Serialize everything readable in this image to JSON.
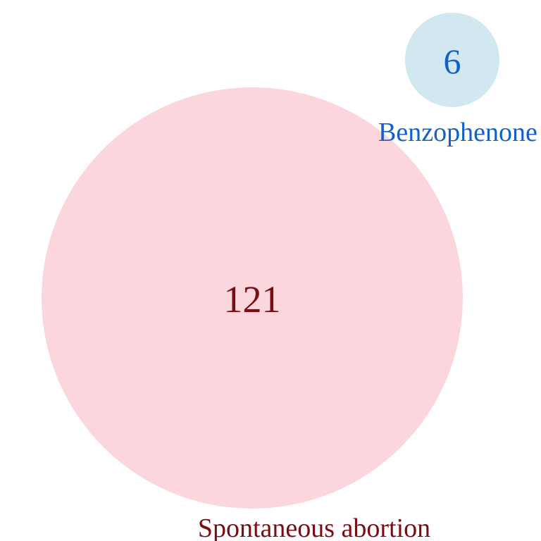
{
  "sets": [
    {
      "label": "Spontaneous abortion",
      "count": "121",
      "circle_color": "#fcd6dd",
      "text_color": "#7a0c13"
    },
    {
      "label": "Benzophenone",
      "count": "6",
      "circle_color": "#d1e8f0",
      "text_color": "#1560c8"
    }
  ],
  "overlap_count": 0
}
